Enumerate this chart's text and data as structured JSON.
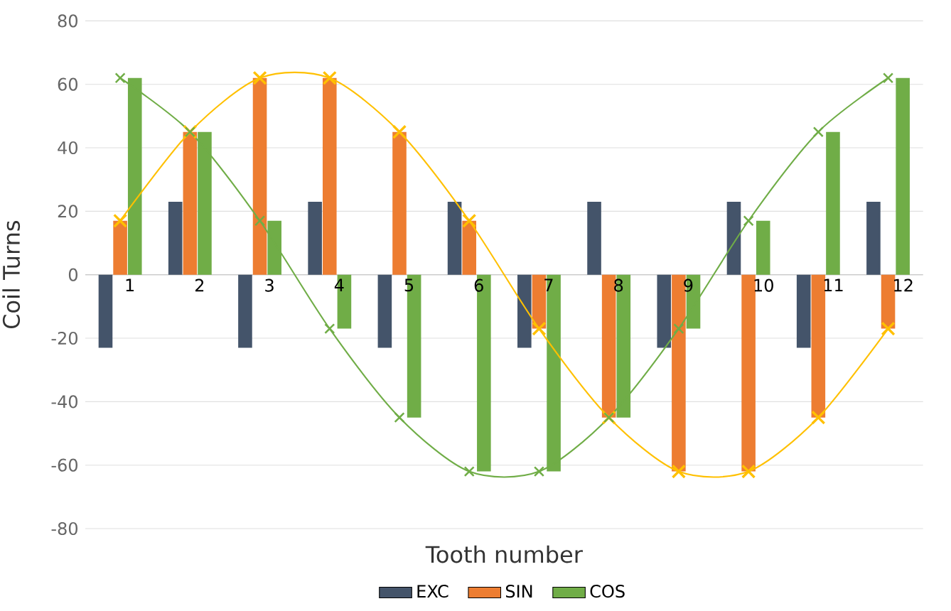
{
  "chart_data": {
    "type": "bar",
    "xlabel": "Tooth number",
    "ylabel": "Coil Turns",
    "categories": [
      "1",
      "2",
      "3",
      "4",
      "5",
      "6",
      "7",
      "8",
      "9",
      "10",
      "11",
      "12"
    ],
    "series": [
      {
        "name": "EXC",
        "color": "#44546a",
        "values": [
          -23,
          23,
          -23,
          23,
          -23,
          23,
          -23,
          23,
          -23,
          23,
          -23,
          23
        ]
      },
      {
        "name": "SIN",
        "color": "#ed7d31",
        "values": [
          17,
          45,
          62,
          62,
          45,
          17,
          -17,
          -45,
          -62,
          -62,
          -45,
          -17
        ]
      },
      {
        "name": "COS",
        "color": "#70ad47",
        "values": [
          62,
          45,
          17,
          -17,
          -45,
          -62,
          -62,
          -45,
          -17,
          17,
          45,
          62
        ]
      },
      {
        "type": "line",
        "color": "#ffc000",
        "marker": "cross",
        "values": [
          17,
          45,
          62,
          62,
          45,
          17,
          -17,
          -45,
          -62,
          -62,
          -45,
          -17
        ]
      },
      {
        "type": "line",
        "color": "#70ad47",
        "marker": "cross",
        "values": [
          62,
          45,
          17,
          -17,
          -45,
          -62,
          -62,
          -45,
          -17,
          17,
          45,
          62
        ]
      }
    ],
    "ylim": [
      -80,
      80
    ],
    "yticks": [
      -80,
      -60,
      -40,
      -20,
      0,
      20,
      40,
      60,
      80
    ],
    "grid": "y",
    "legend": "bottom"
  }
}
